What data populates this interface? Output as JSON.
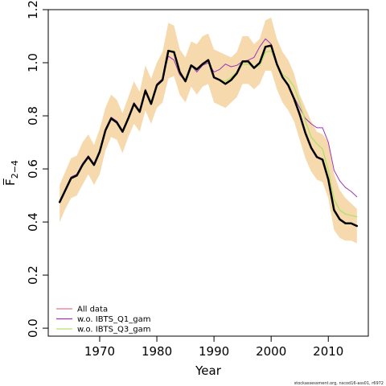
{
  "chart_data": {
    "type": "line",
    "xlabel": "Year",
    "ylabel": "F̅",
    "ylabel_subscript": "2−4",
    "xlim": [
      1961,
      2017
    ],
    "ylim": [
      -0.03,
      1.2
    ],
    "x_ticks": [
      1970,
      1980,
      1990,
      2000,
      2010
    ],
    "y_ticks": [
      0.0,
      0.2,
      0.4,
      0.6,
      0.8,
      1.0,
      1.2
    ],
    "y_tick_labels": [
      "0.0",
      "0.2",
      "0.4",
      "0.6",
      "0.8",
      "1.0",
      "1.2"
    ],
    "grid": false,
    "legend_position": "bottom-left",
    "credit": "stockassessment.org, nscod16-ass01, r6972",
    "x": [
      1963,
      1964,
      1965,
      1966,
      1967,
      1968,
      1969,
      1970,
      1971,
      1972,
      1973,
      1974,
      1975,
      1976,
      1977,
      1978,
      1979,
      1980,
      1981,
      1982,
      1983,
      1984,
      1985,
      1986,
      1987,
      1988,
      1989,
      1990,
      1991,
      1992,
      1993,
      1994,
      1995,
      1996,
      1997,
      1998,
      1999,
      2000,
      2001,
      2002,
      2003,
      2004,
      2005,
      2006,
      2007,
      2008,
      2009,
      2010,
      2011,
      2012,
      2013,
      2014,
      2015
    ],
    "confidence_band": {
      "color": "#f6d9ad",
      "upper": [
        0.54,
        0.59,
        0.64,
        0.65,
        0.7,
        0.73,
        0.69,
        0.75,
        0.83,
        0.88,
        0.86,
        0.81,
        0.87,
        0.93,
        0.89,
        0.99,
        0.94,
        1.0,
        1.04,
        1.15,
        1.14,
        1.05,
        1.02,
        1.08,
        1.07,
        1.1,
        1.11,
        1.05,
        1.04,
        1.03,
        1.02,
        1.04,
        1.1,
        1.1,
        1.07,
        1.09,
        1.16,
        1.17,
        1.09,
        1.04,
        1.01,
        0.96,
        0.88,
        0.83,
        0.78,
        0.74,
        0.73,
        0.7,
        0.58,
        0.52,
        0.49,
        0.47,
        0.45
      ],
      "lower": [
        0.4,
        0.45,
        0.49,
        0.5,
        0.54,
        0.58,
        0.54,
        0.58,
        0.67,
        0.72,
        0.71,
        0.66,
        0.72,
        0.77,
        0.74,
        0.82,
        0.77,
        0.83,
        0.85,
        0.94,
        0.95,
        0.88,
        0.85,
        0.91,
        0.88,
        0.91,
        0.92,
        0.85,
        0.84,
        0.83,
        0.85,
        0.87,
        0.92,
        0.92,
        0.9,
        0.92,
        0.97,
        0.97,
        0.9,
        0.85,
        0.82,
        0.78,
        0.71,
        0.64,
        0.59,
        0.56,
        0.55,
        0.49,
        0.37,
        0.34,
        0.33,
        0.33,
        0.32
      ]
    },
    "series": [
      {
        "name": "All data",
        "color": "#e8749b",
        "width": 1.2,
        "values": [
          0.475,
          0.52,
          0.565,
          0.575,
          0.615,
          0.645,
          0.615,
          0.665,
          0.745,
          0.79,
          0.775,
          0.74,
          0.79,
          0.845,
          0.815,
          0.895,
          0.845,
          0.915,
          0.935,
          1.045,
          1.04,
          0.965,
          0.93,
          0.99,
          0.975,
          0.995,
          1.01,
          0.945,
          0.935,
          0.92,
          0.935,
          0.96,
          1.005,
          1.005,
          0.98,
          1.0,
          1.06,
          1.065,
          0.995,
          0.945,
          0.915,
          0.865,
          0.805,
          0.735,
          0.68,
          0.645,
          0.635,
          0.56,
          0.445,
          0.41,
          0.395,
          0.395,
          0.385
        ],
        "in_legend": true
      },
      {
        "name": "w.o. IBTS_Q1_gam",
        "color": "#9b34b8",
        "width": 1.0,
        "values": [
          0.48,
          0.525,
          0.57,
          0.58,
          0.62,
          0.65,
          0.62,
          0.67,
          0.75,
          0.795,
          0.78,
          0.745,
          0.795,
          0.85,
          0.82,
          0.9,
          0.85,
          0.92,
          0.94,
          1.025,
          1.01,
          0.955,
          0.93,
          0.99,
          0.965,
          0.99,
          1.0,
          0.965,
          0.975,
          0.995,
          0.985,
          0.99,
          1.005,
          1.01,
          1.02,
          1.06,
          1.09,
          1.07,
          0.995,
          0.945,
          0.915,
          0.87,
          0.83,
          0.79,
          0.77,
          0.755,
          0.755,
          0.7,
          0.595,
          0.555,
          0.53,
          0.515,
          0.495
        ],
        "in_legend": true
      },
      {
        "name": "w.o. IBTS_Q3_gam",
        "color": "#b8e070",
        "width": 1.5,
        "values": [
          0.475,
          0.52,
          0.565,
          0.575,
          0.615,
          0.645,
          0.615,
          0.665,
          0.745,
          0.79,
          0.775,
          0.74,
          0.79,
          0.845,
          0.815,
          0.895,
          0.845,
          0.915,
          0.935,
          1.045,
          1.045,
          0.965,
          0.935,
          0.99,
          0.975,
          0.995,
          1.01,
          0.945,
          0.935,
          0.93,
          0.945,
          0.965,
          0.995,
          0.995,
          0.98,
          0.99,
          1.04,
          1.045,
          0.995,
          0.955,
          0.94,
          0.91,
          0.85,
          0.78,
          0.72,
          0.695,
          0.675,
          0.595,
          0.485,
          0.445,
          0.43,
          0.425,
          0.42
        ],
        "in_legend": true
      },
      {
        "name": "",
        "color": "#000000",
        "width": 2.5,
        "values": [
          0.475,
          0.52,
          0.565,
          0.575,
          0.615,
          0.645,
          0.615,
          0.665,
          0.745,
          0.79,
          0.775,
          0.74,
          0.79,
          0.845,
          0.815,
          0.895,
          0.845,
          0.915,
          0.935,
          1.045,
          1.04,
          0.965,
          0.93,
          0.99,
          0.975,
          0.995,
          1.01,
          0.945,
          0.935,
          0.92,
          0.935,
          0.96,
          1.005,
          1.005,
          0.98,
          1.0,
          1.06,
          1.065,
          0.995,
          0.945,
          0.915,
          0.865,
          0.805,
          0.735,
          0.68,
          0.645,
          0.635,
          0.56,
          0.445,
          0.41,
          0.395,
          0.395,
          0.385
        ],
        "in_legend": false
      }
    ]
  }
}
